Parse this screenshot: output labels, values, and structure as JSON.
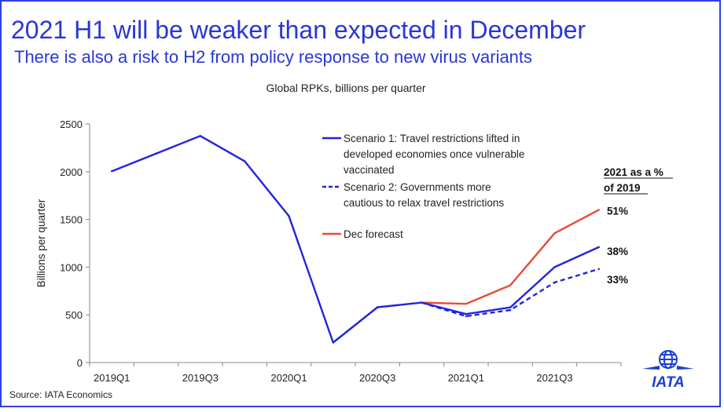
{
  "header": {
    "title": "2021 H1 will be weaker than expected in December",
    "subtitle": "There is also a risk to H2 from policy response to new virus variants"
  },
  "footer": {
    "source": "Source: IATA Economics"
  },
  "logo": {
    "text": "IATA",
    "icon": "globe-icon",
    "color": "#1a3fd0"
  },
  "colors": {
    "accent": "#2a36d6",
    "scenario": "#2323e0",
    "forecast": "#e84a35"
  },
  "chart_data": {
    "type": "line",
    "title": "Global RPKs, billions per quarter",
    "ylabel": "Billions per quarter",
    "ylim": [
      0,
      2500
    ],
    "yticks": [
      0,
      500,
      1000,
      1500,
      2000,
      2500
    ],
    "categories": [
      "2019Q1",
      "2019Q2",
      "2019Q3",
      "2019Q4",
      "2020Q1",
      "2020Q2",
      "2020Q3",
      "2020Q4",
      "2021Q1",
      "2021Q2",
      "2021Q3",
      "2021Q4"
    ],
    "xtick_labels": [
      "2019Q1",
      "",
      "2019Q3",
      "",
      "2020Q1",
      "",
      "2020Q3",
      "",
      "2021Q1",
      "",
      "2021Q3",
      ""
    ],
    "series": [
      {
        "name": "Scenario 1: Travel restrictions lifted in developed economies once vulnerable vaccinated",
        "legend_lines": [
          "Scenario 1: Travel restrictions lifted in",
          "developed economies once vulnerable",
          "vaccinated"
        ],
        "style": "solid",
        "color": "#2323e0",
        "values": [
          2005,
          2190,
          2375,
          2110,
          1535,
          210,
          580,
          628,
          508,
          578,
          1000,
          1210
        ]
      },
      {
        "name": "Scenario 2: Governments more cautious to relax travel restrictions",
        "legend_lines": [
          "Scenario 2: Governments more",
          "cautious to relax travel restrictions"
        ],
        "style": "dashed",
        "color": "#2323e0",
        "values": [
          null,
          null,
          null,
          null,
          null,
          null,
          null,
          628,
          485,
          550,
          840,
          980
        ]
      },
      {
        "name": "Dec forecast",
        "legend_lines": [
          "Dec forecast"
        ],
        "style": "solid",
        "color": "#e84a35",
        "values": [
          null,
          null,
          null,
          null,
          null,
          null,
          null,
          628,
          615,
          810,
          1355,
          1600
        ]
      }
    ],
    "annotation_header": [
      "2021 as a %",
      "of 2019"
    ],
    "end_labels": [
      "38%",
      "33%",
      "51%"
    ],
    "legend_position": "top-right",
    "grid": false
  }
}
